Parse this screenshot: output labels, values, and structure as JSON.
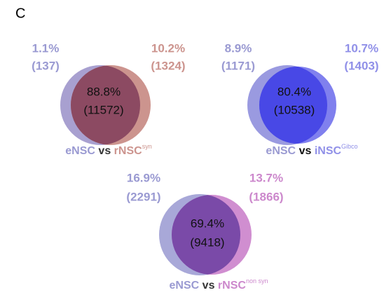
{
  "panel_label": "C",
  "venns": [
    {
      "left": {
        "percent": "1.1%",
        "count": "(137)"
      },
      "right": {
        "percent": "10.2%",
        "count": "(1324)"
      },
      "overlap": {
        "percent": "88.8%",
        "count": "(11572)"
      },
      "caption": {
        "left": "eNSC",
        "vs": "vs",
        "right": "rNSC",
        "sup": "syn"
      }
    },
    {
      "left": {
        "percent": "8.9%",
        "count": "(1171)"
      },
      "right": {
        "percent": "10.7%",
        "count": "(1403)"
      },
      "overlap": {
        "percent": "80.4%",
        "count": "(10538)"
      },
      "caption": {
        "left": "eNSC",
        "vs": "vs",
        "right": "iNSC",
        "sup": "Gibco"
      }
    },
    {
      "left": {
        "percent": "16.9%",
        "count": "(2291)"
      },
      "right": {
        "percent": "13.7%",
        "count": "(1866)"
      },
      "overlap": {
        "percent": "69.4%",
        "count": "(9418)"
      },
      "caption": {
        "left": "eNSC",
        "vs": "vs",
        "right": "rNSC",
        "sup": "non syn"
      }
    }
  ]
}
